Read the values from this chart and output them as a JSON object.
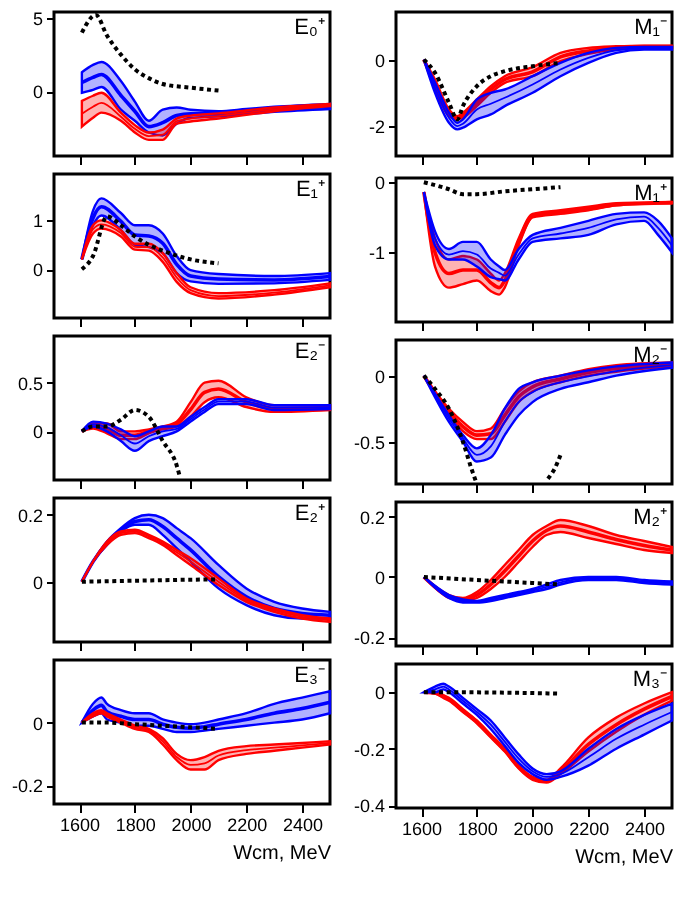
{
  "chart_data": [
    {
      "type": "line",
      "title": "E₀⁺",
      "xlim": [
        1510,
        2500
      ],
      "xticks": [
        1600,
        1800,
        2000,
        2200,
        2400
      ],
      "ylim": [
        -4.4,
        5.4
      ],
      "yticks": [
        0,
        5
      ],
      "tick_labels": "y",
      "grid": false,
      "series": [
        {
          "color": "#0000ff",
          "x": [
            1610,
            1650,
            1680,
            1750,
            1800,
            1850,
            1900,
            1950,
            2000,
            2100,
            2200,
            2300,
            2500
          ],
          "values": [
            0.6,
            0.95,
            1.15,
            -0.28,
            -1.35,
            -2.4,
            -2.13,
            -1.65,
            -1.53,
            -1.53,
            -1.38,
            -1.23,
            -1.03
          ],
          "upper": [
            1.3,
            1.8,
            2.0,
            0.7,
            -0.7,
            -2.0,
            -1.25,
            -1.1,
            -1.25,
            -1.35,
            -1.2,
            -1.05,
            -0.85
          ],
          "lower": [
            -0.1,
            0.1,
            0.3,
            -1.25,
            -2.0,
            -2.8,
            -3.0,
            -2.2,
            -1.8,
            -1.7,
            -1.55,
            -1.4,
            -1.2
          ]
        },
        {
          "color": "#ff0000",
          "x": [
            1610,
            1650,
            1680,
            1750,
            1800,
            1850,
            1900,
            1950,
            2000,
            2100,
            2200,
            2300,
            2500
          ],
          "values": [
            -1.53,
            -1.05,
            -0.78,
            -1.73,
            -2.55,
            -3.05,
            -2.95,
            -2.03,
            -1.85,
            -1.68,
            -1.45,
            -1.23,
            -0.93
          ],
          "upper": [
            -0.65,
            -0.3,
            -0.1,
            -1.45,
            -2.3,
            -2.8,
            -2.6,
            -1.85,
            -1.65,
            -1.5,
            -1.3,
            -1.1,
            -0.85
          ],
          "lower": [
            -2.4,
            -1.8,
            -1.45,
            -2.0,
            -2.8,
            -3.3,
            -3.3,
            -2.2,
            -2.05,
            -1.85,
            -1.6,
            -1.35,
            -1.0
          ]
        },
        {
          "color": "#000000",
          "line_style": "dotted",
          "x": [
            1610,
            1660,
            1700,
            1750,
            1800,
            1850,
            1900,
            2000,
            2100
          ],
          "values": [
            4.0,
            5.2,
            3.8,
            2.5,
            1.5,
            0.9,
            0.5,
            0.25,
            0.05
          ]
        }
      ]
    },
    {
      "type": "line",
      "title": "M₁⁻",
      "xlim": [
        1510,
        2500
      ],
      "xticks": [
        1600,
        1800,
        2000,
        2200,
        2400
      ],
      "ylim": [
        -2.9,
        1.43
      ],
      "yticks": [
        -2,
        0
      ],
      "tick_labels": "y",
      "grid": false,
      "series": [
        {
          "color": "#ff0000",
          "x": [
            1610,
            1650,
            1700,
            1730,
            1750,
            1800,
            1850,
            1900,
            2000,
            2100,
            2200,
            2300,
            2400,
            2500
          ],
          "values": [
            0,
            -0.75,
            -1.6,
            -1.75,
            -1.68,
            -1.3,
            -0.9,
            -0.6,
            -0.37,
            0.08,
            0.26,
            0.35,
            0.39,
            0.39
          ],
          "upper": [
            0,
            -0.6,
            -1.5,
            -1.7,
            -1.6,
            -1.2,
            -0.8,
            -0.5,
            -0.23,
            0.2,
            0.35,
            0.4,
            0.42,
            0.42
          ],
          "lower": [
            0,
            -0.9,
            -1.7,
            -1.8,
            -1.75,
            -1.4,
            -1.0,
            -0.7,
            -0.5,
            -0.05,
            0.17,
            0.3,
            0.35,
            0.35
          ]
        },
        {
          "color": "#0000ff",
          "x": [
            1610,
            1650,
            1700,
            1730,
            1750,
            1800,
            1850,
            1900,
            2000,
            2100,
            2200,
            2300,
            2400,
            2500
          ],
          "values": [
            0,
            -0.85,
            -1.75,
            -2.0,
            -1.93,
            -1.5,
            -1.33,
            -1.15,
            -0.75,
            -0.3,
            0.05,
            0.28,
            0.34,
            0.34
          ],
          "upper": [
            0,
            -0.7,
            -1.6,
            -1.9,
            -1.8,
            -1.2,
            -1.0,
            -0.9,
            -0.5,
            -0.1,
            0.2,
            0.35,
            0.38,
            0.38
          ],
          "lower": [
            0,
            -1.0,
            -1.9,
            -2.1,
            -2.05,
            -1.8,
            -1.65,
            -1.4,
            -1.0,
            -0.5,
            -0.1,
            0.2,
            0.3,
            0.3
          ]
        },
        {
          "color": "#000000",
          "line_style": "dotted",
          "x": [
            1610,
            1650,
            1700,
            1730,
            1750,
            1800,
            1850,
            1900,
            2000,
            2100
          ],
          "values": [
            0,
            -0.4,
            -1.3,
            -1.8,
            -1.4,
            -0.8,
            -0.5,
            -0.35,
            -0.2,
            -0.1
          ]
        }
      ]
    },
    {
      "type": "line",
      "title": "E₁⁺",
      "xlim": [
        1510,
        2500
      ],
      "xticks": [
        1600,
        1800,
        2000,
        2200,
        2400
      ],
      "ylim": [
        -1.0,
        1.95
      ],
      "yticks": [
        0,
        1
      ],
      "tick_labels": "y",
      "grid": false,
      "series": [
        {
          "color": "#0000ff",
          "x": [
            1610,
            1650,
            1680,
            1750,
            1800,
            1850,
            1900,
            1950,
            2000,
            2100,
            2300,
            2500
          ],
          "values": [
            0.2,
            1.05,
            1.28,
            0.98,
            0.7,
            0.68,
            0.53,
            0.1,
            -0.14,
            -0.2,
            -0.22,
            -0.15
          ],
          "upper": [
            0.2,
            1.2,
            1.45,
            1.15,
            0.9,
            0.9,
            0.73,
            0.27,
            -0.02,
            -0.1,
            -0.14,
            -0.08
          ],
          "lower": [
            0.2,
            0.9,
            1.1,
            0.8,
            0.5,
            0.45,
            0.33,
            -0.08,
            -0.25,
            -0.3,
            -0.29,
            -0.22
          ]
        },
        {
          "color": "#ff0000",
          "x": [
            1610,
            1650,
            1680,
            1750,
            1800,
            1850,
            1900,
            1950,
            2000,
            2100,
            2300,
            2500
          ],
          "values": [
            0.2,
            0.82,
            0.92,
            0.74,
            0.46,
            0.45,
            0.24,
            -0.17,
            -0.43,
            -0.55,
            -0.48,
            -0.33
          ],
          "upper": [
            0.2,
            0.9,
            1.0,
            0.8,
            0.52,
            0.52,
            0.33,
            -0.08,
            -0.37,
            -0.49,
            -0.43,
            -0.29
          ],
          "lower": [
            0.2,
            0.73,
            0.83,
            0.67,
            0.4,
            0.38,
            0.15,
            -0.26,
            -0.49,
            -0.6,
            -0.52,
            -0.37
          ]
        },
        {
          "color": "#000000",
          "line_style": "dotted",
          "x": [
            1610,
            1650,
            1700,
            1750,
            1800,
            1850,
            1900,
            2000,
            2100
          ],
          "values": [
            0,
            0.27,
            1.08,
            0.9,
            0.67,
            0.5,
            0.38,
            0.2,
            0.12
          ]
        }
      ]
    },
    {
      "type": "line",
      "title": "M₁⁺",
      "xlim": [
        1510,
        2500
      ],
      "xticks": [
        1600,
        1800,
        2000,
        2200,
        2400
      ],
      "ylim": [
        -1.99,
        0.06
      ],
      "yticks": [
        -1,
        0
      ],
      "tick_labels": "y",
      "grid": false,
      "series": [
        {
          "color": "#ff0000",
          "x": [
            1610,
            1650,
            1700,
            1750,
            1800,
            1850,
            1880,
            1900,
            1950,
            2000,
            2100,
            2200,
            2300,
            2400,
            2450,
            2500
          ],
          "values": [
            -0.14,
            -1.0,
            -1.3,
            -1.25,
            -1.25,
            -1.43,
            -1.5,
            -1.4,
            -0.85,
            -0.48,
            -0.43,
            -0.38,
            -0.32,
            -0.3,
            -0.295,
            -0.29
          ],
          "upper": [
            -0.14,
            -0.8,
            -1.1,
            -1.05,
            -1.1,
            -1.3,
            -1.4,
            -1.3,
            -0.8,
            -0.45,
            -0.4,
            -0.35,
            -0.3,
            -0.29,
            -0.285,
            -0.28
          ],
          "lower": [
            -0.14,
            -1.2,
            -1.5,
            -1.45,
            -1.4,
            -1.55,
            -1.6,
            -1.5,
            -0.9,
            -0.5,
            -0.45,
            -0.4,
            -0.33,
            -0.31,
            -0.305,
            -0.3
          ]
        },
        {
          "color": "#0000ff",
          "x": [
            1610,
            1650,
            1700,
            1750,
            1800,
            1850,
            1880,
            1900,
            1950,
            2000,
            2100,
            2200,
            2300,
            2400,
            2450,
            2500
          ],
          "values": [
            -0.14,
            -0.8,
            -1.03,
            -0.98,
            -1.03,
            -1.23,
            -1.29,
            -1.33,
            -1.03,
            -0.8,
            -0.73,
            -0.65,
            -0.53,
            -0.49,
            -0.65,
            -0.9
          ],
          "upper": [
            -0.14,
            -0.7,
            -0.95,
            -0.85,
            -0.85,
            -1.1,
            -1.2,
            -1.25,
            -0.95,
            -0.75,
            -0.65,
            -0.55,
            -0.45,
            -0.43,
            -0.55,
            -0.8
          ],
          "lower": [
            -0.14,
            -0.9,
            -1.1,
            -1.1,
            -1.2,
            -1.35,
            -1.38,
            -1.4,
            -1.1,
            -0.85,
            -0.8,
            -0.75,
            -0.6,
            -0.55,
            -0.75,
            -1.0
          ]
        },
        {
          "color": "#000000",
          "line_style": "dotted",
          "x": [
            1610,
            1700,
            1750,
            1800,
            1900,
            2000,
            2100
          ],
          "values": [
            0,
            -0.1,
            -0.17,
            -0.17,
            -0.13,
            -0.1,
            -0.07
          ]
        }
      ]
    },
    {
      "type": "line",
      "title": "E₂⁻",
      "xlim": [
        1510,
        2500
      ],
      "xticks": [
        1600,
        1800,
        2000,
        2200,
        2400
      ],
      "ylim": [
        -0.5,
        0.98
      ],
      "yticks": [
        0,
        0.5
      ],
      "tick_labels": "y",
      "grid": false,
      "series": [
        {
          "color": "#ff0000",
          "x": [
            1610,
            1650,
            1700,
            1750,
            1800,
            1850,
            1900,
            1950,
            2000,
            2050,
            2100,
            2200,
            2300,
            2500
          ],
          "values": [
            0,
            0.055,
            0.03,
            -0.04,
            -0.04,
            0,
            0.035,
            0.075,
            0.225,
            0.4,
            0.435,
            0.3,
            0.235,
            0.245
          ],
          "upper": [
            0,
            0.08,
            0.08,
            0.0,
            0.0,
            0.02,
            0.05,
            0.1,
            0.3,
            0.5,
            0.52,
            0.35,
            0.27,
            0.27
          ],
          "lower": [
            0,
            0.03,
            -0.02,
            -0.08,
            -0.08,
            -0.02,
            0.02,
            0.05,
            0.15,
            0.3,
            0.35,
            0.25,
            0.2,
            0.22
          ]
        },
        {
          "color": "#0000ff",
          "x": [
            1610,
            1650,
            1700,
            1750,
            1800,
            1850,
            1900,
            1950,
            2000,
            2050,
            2100,
            2200,
            2300,
            2500
          ],
          "values": [
            0,
            0.075,
            0.04,
            -0.04,
            -0.125,
            -0.05,
            0,
            0.025,
            0.125,
            0.225,
            0.305,
            0.305,
            0.245,
            0.25
          ],
          "upper": [
            0,
            0.1,
            0.08,
            0.02,
            -0.05,
            0.0,
            0.05,
            0.05,
            0.15,
            0.25,
            0.33,
            0.33,
            0.27,
            0.27
          ],
          "lower": [
            0,
            0.05,
            0.0,
            -0.1,
            -0.2,
            -0.1,
            -0.05,
            0.0,
            0.1,
            0.2,
            0.28,
            0.28,
            0.22,
            0.23
          ]
        },
        {
          "color": "#000000",
          "line_style": "dotted",
          "x": [
            1610,
            1650,
            1700,
            1750,
            1800,
            1850,
            1900,
            1950,
            1960
          ],
          "values": [
            0,
            0.05,
            0.05,
            0.12,
            0.22,
            0.15,
            -0.1,
            -0.35,
            -0.45
          ]
        }
      ]
    },
    {
      "type": "line",
      "title": "M₂⁻",
      "xlim": [
        1510,
        2500
      ],
      "xticks": [
        1600,
        1800,
        2000,
        2200,
        2400
      ],
      "ylim": [
        -0.82,
        0.27
      ],
      "yticks": [
        -0.5,
        0
      ],
      "tick_labels": "y",
      "grid": false,
      "series": [
        {
          "color": "#ff0000",
          "x": [
            1610,
            1700,
            1750,
            1800,
            1850,
            1900,
            1950,
            2000,
            2100,
            2200,
            2300,
            2500
          ],
          "values": [
            0,
            -0.275,
            -0.385,
            -0.45,
            -0.44,
            -0.3,
            -0.16,
            -0.085,
            -0.025,
            0.025,
            0.055,
            0.085
          ],
          "upper": [
            0,
            -0.25,
            -0.35,
            -0.42,
            -0.4,
            -0.25,
            -0.12,
            -0.05,
            0.0,
            0.05,
            0.08,
            0.1
          ],
          "lower": [
            0,
            -0.3,
            -0.42,
            -0.48,
            -0.48,
            -0.35,
            -0.2,
            -0.12,
            -0.05,
            0.0,
            0.03,
            0.07
          ]
        },
        {
          "color": "#0000ff",
          "x": [
            1610,
            1700,
            1750,
            1800,
            1850,
            1900,
            1950,
            2000,
            2100,
            2200,
            2300,
            2500
          ],
          "values": [
            0,
            -0.325,
            -0.475,
            -0.6,
            -0.535,
            -0.35,
            -0.2,
            -0.125,
            -0.05,
            -0.005,
            0.035,
            0.08
          ],
          "upper": [
            0,
            -0.3,
            -0.45,
            -0.55,
            -0.45,
            -0.25,
            -0.1,
            -0.05,
            0.0,
            0.04,
            0.07,
            0.1
          ],
          "lower": [
            0,
            -0.35,
            -0.5,
            -0.65,
            -0.62,
            -0.45,
            -0.3,
            -0.2,
            -0.1,
            -0.05,
            0.0,
            0.06
          ]
        },
        {
          "color": "#000000",
          "line_style": "dotted",
          "x": [
            1610,
            1650,
            1700,
            1750,
            1780,
            1800
          ],
          "values": [
            0,
            -0.1,
            -0.25,
            -0.5,
            -0.7,
            -0.82
          ]
        },
        {
          "color": "#000000",
          "line_style": "dotted",
          "x": [
            2055,
            2080,
            2100
          ],
          "values": [
            -0.78,
            -0.7,
            -0.6
          ]
        }
      ]
    },
    {
      "type": "line",
      "title": "E₂⁺",
      "xlim": [
        1510,
        2500
      ],
      "xticks": [
        1600,
        1800,
        2000,
        2200,
        2400
      ],
      "ylim": [
        -0.18,
        0.25
      ],
      "yticks": [
        0,
        0.2
      ],
      "tick_labels": "y",
      "grid": false,
      "series": [
        {
          "color": "#0000ff",
          "x": [
            1610,
            1650,
            1700,
            1750,
            1800,
            1850,
            1900,
            1950,
            2000,
            2100,
            2200,
            2300,
            2400,
            2500
          ],
          "values": [
            0,
            0.06,
            0.115,
            0.155,
            0.18,
            0.185,
            0.165,
            0.13,
            0.095,
            0.015,
            -0.045,
            -0.08,
            -0.095,
            -0.1
          ],
          "upper": [
            0,
            0.06,
            0.12,
            0.16,
            0.19,
            0.2,
            0.19,
            0.16,
            0.13,
            0.05,
            -0.02,
            -0.06,
            -0.08,
            -0.09
          ],
          "lower": [
            0,
            0.06,
            0.11,
            0.15,
            0.17,
            0.17,
            0.14,
            0.1,
            0.06,
            -0.02,
            -0.07,
            -0.1,
            -0.11,
            -0.11
          ]
        },
        {
          "color": "#ff0000",
          "x": [
            1610,
            1650,
            1700,
            1750,
            1800,
            1850,
            1900,
            1950,
            2000,
            2100,
            2200,
            2300,
            2400,
            2500
          ],
          "values": [
            0,
            0.06,
            0.115,
            0.145,
            0.15,
            0.135,
            0.115,
            0.088,
            0.06,
            0,
            -0.055,
            -0.085,
            -0.105,
            -0.115
          ],
          "upper": [
            0,
            0.06,
            0.12,
            0.15,
            0.155,
            0.14,
            0.12,
            0.095,
            0.07,
            0.01,
            -0.05,
            -0.08,
            -0.1,
            -0.11
          ],
          "lower": [
            0,
            0.06,
            0.11,
            0.14,
            0.145,
            0.13,
            0.11,
            0.08,
            0.05,
            -0.01,
            -0.06,
            -0.09,
            -0.11,
            -0.12
          ]
        },
        {
          "color": "#000000",
          "line_style": "dotted",
          "x": [
            1610,
            1800,
            2000,
            2100
          ],
          "values": [
            0,
            0.003,
            0.006,
            0.007
          ]
        }
      ]
    },
    {
      "type": "line",
      "title": "M₂⁺",
      "xlim": [
        1510,
        2500
      ],
      "xticks": [
        1600,
        1800,
        2000,
        2200,
        2400
      ],
      "ylim": [
        -0.23,
        0.25
      ],
      "yticks": [
        -0.2,
        0,
        0.2
      ],
      "tick_labels": "y",
      "grid": false,
      "series": [
        {
          "color": "#ff0000",
          "x": [
            1610,
            1700,
            1750,
            1800,
            1850,
            1900,
            1950,
            2000,
            2050,
            2100,
            2200,
            2300,
            2400,
            2500
          ],
          "values": [
            0,
            -0.065,
            -0.075,
            -0.06,
            -0.025,
            0.02,
            0.07,
            0.12,
            0.155,
            0.17,
            0.15,
            0.125,
            0.105,
            0.09
          ],
          "upper": [
            0,
            -0.06,
            -0.07,
            -0.05,
            -0.01,
            0.04,
            0.09,
            0.14,
            0.17,
            0.19,
            0.17,
            0.14,
            0.12,
            0.1
          ],
          "lower": [
            0,
            -0.07,
            -0.08,
            -0.07,
            -0.04,
            0.0,
            0.05,
            0.1,
            0.14,
            0.15,
            0.13,
            0.11,
            0.09,
            0.08
          ]
        },
        {
          "color": "#0000ff",
          "x": [
            1610,
            1700,
            1750,
            1800,
            1850,
            1900,
            1950,
            2000,
            2050,
            2100,
            2200,
            2300,
            2400,
            2500
          ],
          "values": [
            0,
            -0.065,
            -0.08,
            -0.083,
            -0.075,
            -0.065,
            -0.055,
            -0.045,
            -0.033,
            -0.018,
            -0.005,
            -0.005,
            -0.015,
            -0.02
          ],
          "upper": [
            0,
            -0.06,
            -0.075,
            -0.08,
            -0.07,
            -0.06,
            -0.05,
            -0.04,
            -0.025,
            -0.01,
            0.0,
            0.0,
            -0.01,
            -0.015
          ],
          "lower": [
            0,
            -0.07,
            -0.085,
            -0.085,
            -0.08,
            -0.07,
            -0.06,
            -0.05,
            -0.04,
            -0.025,
            -0.01,
            -0.01,
            -0.02,
            -0.025
          ]
        },
        {
          "color": "#000000",
          "line_style": "dotted",
          "x": [
            1610,
            1800,
            2000,
            2100
          ],
          "values": [
            0,
            -0.01,
            -0.02,
            -0.025
          ]
        }
      ]
    },
    {
      "type": "line",
      "title": "E₃⁻",
      "xlabel": "Wcm, MeV",
      "xlim": [
        1510,
        2500
      ],
      "xticks": [
        1600,
        1800,
        2000,
        2200,
        2400
      ],
      "ylim": [
        -0.26,
        0.2
      ],
      "yticks": [
        -0.2,
        0
      ],
      "grid": false,
      "series": [
        {
          "color": "#0000ff",
          "x": [
            1610,
            1650,
            1680,
            1700,
            1750,
            1800,
            1850,
            1900,
            1950,
            2000,
            2050,
            2100,
            2200,
            2300,
            2400,
            2500
          ],
          "values": [
            0,
            0.04,
            0.055,
            0.035,
            0.02,
            0.01,
            0.01,
            -0.005,
            -0.015,
            -0.018,
            -0.013,
            -0.005,
            0.01,
            0.03,
            0.045,
            0.065
          ],
          "upper": [
            0,
            0.06,
            0.08,
            0.06,
            0.04,
            0.03,
            0.03,
            0.01,
            0.0,
            -0.005,
            0.0,
            0.01,
            0.03,
            0.06,
            0.08,
            0.1
          ],
          "lower": [
            0,
            0.02,
            0.03,
            0.01,
            0.0,
            -0.01,
            -0.01,
            -0.02,
            -0.03,
            -0.03,
            -0.025,
            -0.02,
            -0.01,
            0.0,
            0.01,
            0.03
          ]
        },
        {
          "color": "#ff0000",
          "x": [
            1610,
            1650,
            1680,
            1700,
            1750,
            1800,
            1850,
            1900,
            1950,
            2000,
            2050,
            2100,
            2200,
            2300,
            2400,
            2500
          ],
          "values": [
            0,
            0.025,
            0.035,
            0.025,
            0.005,
            -0.015,
            -0.025,
            -0.06,
            -0.11,
            -0.135,
            -0.13,
            -0.105,
            -0.088,
            -0.08,
            -0.073,
            -0.065
          ],
          "upper": [
            0,
            0.03,
            0.04,
            0.03,
            0.01,
            -0.01,
            -0.02,
            -0.05,
            -0.1,
            -0.12,
            -0.11,
            -0.09,
            -0.075,
            -0.07,
            -0.065,
            -0.06
          ],
          "lower": [
            0,
            0.02,
            0.03,
            0.02,
            0.0,
            -0.02,
            -0.03,
            -0.07,
            -0.12,
            -0.15,
            -0.15,
            -0.12,
            -0.1,
            -0.09,
            -0.08,
            -0.07
          ]
        },
        {
          "color": "#000000",
          "line_style": "dotted",
          "x": [
            1610,
            1700,
            1800,
            2000,
            2100
          ],
          "values": [
            0,
            0,
            -0.005,
            -0.015,
            -0.02
          ]
        }
      ]
    },
    {
      "type": "line",
      "title": "M₃⁻",
      "xlabel": "Wcm, MeV",
      "xlim": [
        1510,
        2500
      ],
      "xticks": [
        1600,
        1800,
        2000,
        2200,
        2400
      ],
      "ylim": [
        -0.41,
        0.1
      ],
      "yticks": [
        -0.4,
        -0.2,
        0
      ],
      "grid": false,
      "series": [
        {
          "color": "#ff0000",
          "x": [
            1610,
            1650,
            1680,
            1700,
            1750,
            1800,
            1850,
            1900,
            1950,
            2000,
            2050,
            2100,
            2200,
            2300,
            2400,
            2500
          ],
          "values": [
            0,
            -0.003,
            -0.015,
            -0.025,
            -0.065,
            -0.105,
            -0.155,
            -0.205,
            -0.265,
            -0.305,
            -0.315,
            -0.28,
            -0.185,
            -0.115,
            -0.06,
            -0.015
          ],
          "upper": [
            0,
            0,
            -0.01,
            -0.02,
            -0.06,
            -0.1,
            -0.15,
            -0.2,
            -0.26,
            -0.3,
            -0.31,
            -0.27,
            -0.16,
            -0.09,
            -0.04,
            0.0
          ],
          "lower": [
            0,
            -0.005,
            -0.02,
            -0.03,
            -0.07,
            -0.11,
            -0.16,
            -0.21,
            -0.27,
            -0.31,
            -0.32,
            -0.29,
            -0.21,
            -0.14,
            -0.08,
            -0.03
          ]
        },
        {
          "color": "#0000ff",
          "x": [
            1610,
            1650,
            1680,
            1700,
            1750,
            1800,
            1850,
            1900,
            1950,
            2000,
            2050,
            2100,
            2200,
            2300,
            2400,
            2500
          ],
          "values": [
            0,
            0.01,
            0.02,
            0.01,
            -0.03,
            -0.07,
            -0.115,
            -0.175,
            -0.235,
            -0.28,
            -0.3,
            -0.29,
            -0.23,
            -0.165,
            -0.115,
            -0.07
          ],
          "upper": [
            0,
            0.02,
            0.03,
            0.02,
            -0.02,
            -0.06,
            -0.1,
            -0.16,
            -0.22,
            -0.27,
            -0.29,
            -0.28,
            -0.2,
            -0.13,
            -0.08,
            -0.04
          ],
          "lower": [
            0,
            0,
            0.01,
            0,
            -0.04,
            -0.08,
            -0.13,
            -0.19,
            -0.25,
            -0.29,
            -0.31,
            -0.3,
            -0.26,
            -0.2,
            -0.15,
            -0.1
          ]
        },
        {
          "color": "#000000",
          "line_style": "dotted",
          "x": [
            1610,
            1700,
            2000,
            2100
          ],
          "values": [
            0,
            0,
            -0.003,
            -0.005
          ]
        }
      ]
    }
  ]
}
